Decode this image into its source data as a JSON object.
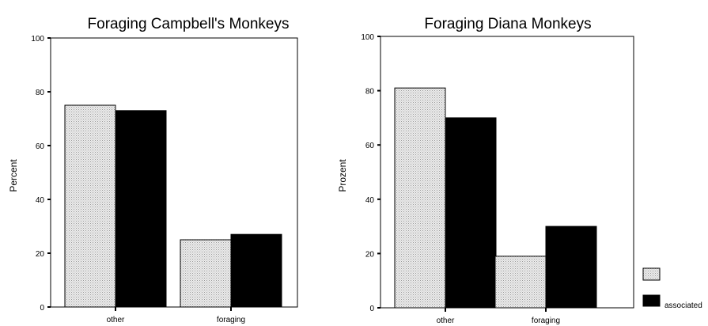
{
  "chart_data": [
    {
      "type": "bar",
      "title": "Foraging Campbell's Monkeys",
      "xlabel": "",
      "ylabel": "Percent",
      "categories": [
        "other",
        "foraging"
      ],
      "series": [
        {
          "values": [
            75,
            25
          ],
          "color": "#d4d4d4"
        },
        {
          "name": "associated",
          "values": [
            73,
            27
          ],
          "color": "#000000"
        }
      ],
      "ylim": [
        0,
        100
      ],
      "yticks": [
        "0",
        "20",
        "40",
        "60",
        "80",
        "100"
      ],
      "grid": false,
      "legend": "none"
    },
    {
      "type": "bar",
      "title": "Foraging Diana Monkeys",
      "xlabel": "",
      "ylabel": "Prozent",
      "categories": [
        "other",
        "foraging"
      ],
      "series": [
        {
          "values": [
            81,
            19
          ],
          "color": "#d4d4d4"
        },
        {
          "name": "associated",
          "values": [
            70,
            30
          ],
          "color": "#000000"
        }
      ],
      "ylim": [
        0,
        100
      ],
      "yticks": [
        "0",
        "20",
        "40",
        "60",
        "80",
        "100"
      ],
      "grid": false,
      "legend": "right"
    }
  ],
  "legend": {
    "items": [
      {
        "label": "",
        "color": "#d4d4d4"
      },
      {
        "label": "associated",
        "color": "#000000"
      }
    ]
  }
}
